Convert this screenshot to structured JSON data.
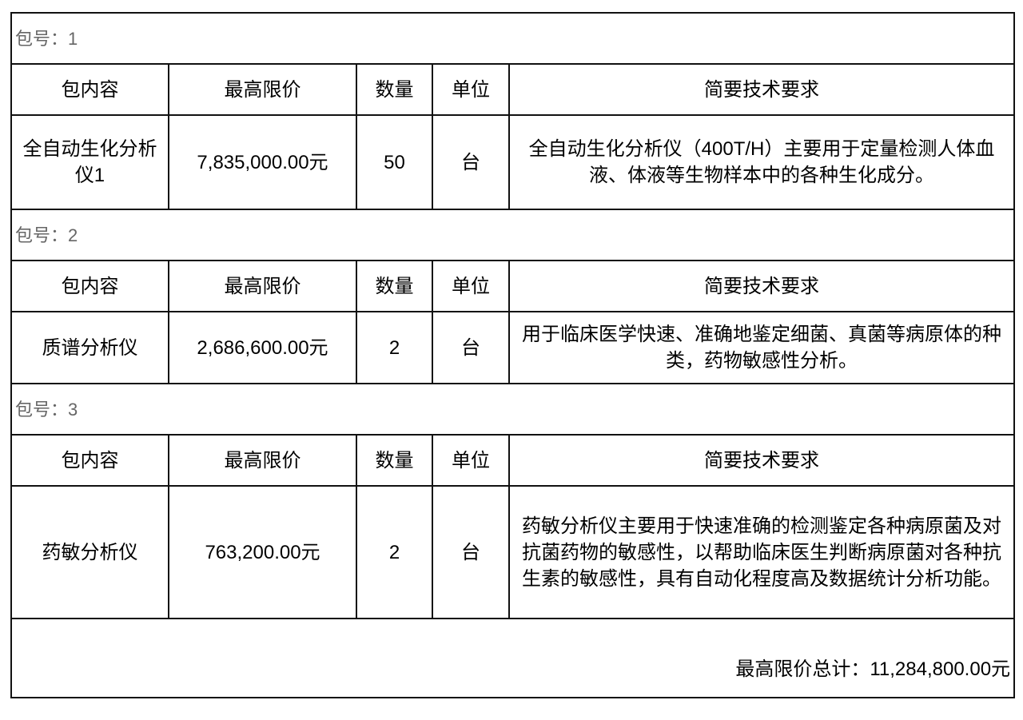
{
  "headers": {
    "content": "包内容",
    "max_price": "最高限价",
    "quantity": "数量",
    "unit": "单位",
    "requirements": "简要技术要求"
  },
  "packages": [
    {
      "label": "包号：1",
      "content": "全自动生化分析仪1",
      "max_price": "7,835,000.00元",
      "quantity": "50",
      "unit": "台",
      "requirements": "全自动生化分析仪（400T/H）主要用于定量检测人体血液、体液等生物样本中的各种生化成分。"
    },
    {
      "label": "包号：2",
      "content": "质谱分析仪",
      "max_price": "2,686,600.00元",
      "quantity": "2",
      "unit": "台",
      "requirements": "用于临床医学快速、准确地鉴定细菌、真菌等病原体的种类，药物敏感性分析。"
    },
    {
      "label": "包号：3",
      "content": "药敏分析仪",
      "max_price": "763,200.00元",
      "quantity": "2",
      "unit": "台",
      "requirements": "药敏分析仪主要用于快速准确的检测鉴定各种病原菌及对抗菌药物的敏感性，以帮助临床医生判断病原菌对各种抗生素的敏感性，具有自动化程度高及数据统计分析功能。"
    }
  ],
  "total": "最高限价总计：11,284,800.00元"
}
